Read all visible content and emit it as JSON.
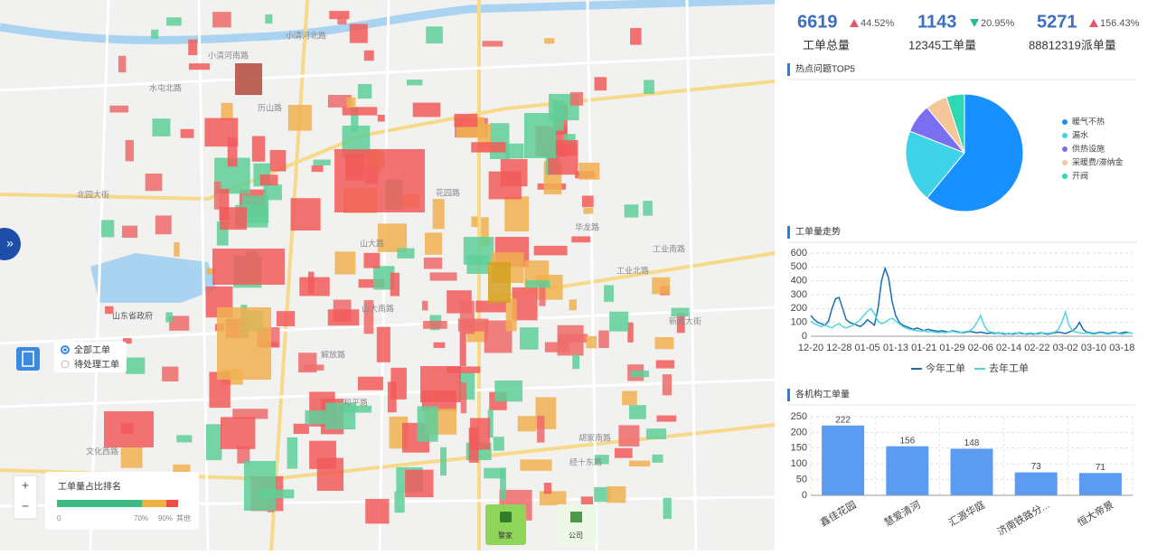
{
  "map": {
    "streets": [
      "小清河北路",
      "小清河南路",
      "北园大街",
      "山东省政府",
      "工业北路",
      "工业南路",
      "山大路",
      "经十东路",
      "解放路",
      "花园路",
      "和平路",
      "文化西路",
      "历山路",
      "华龙路",
      "山大南路",
      "胡家南路",
      "新泺大街",
      "水屯北路"
    ],
    "filter": [
      "全部工单",
      "待处理工单"
    ],
    "legend": {
      "title": "工单量占比排名",
      "ticks": [
        "0",
        "70%",
        "90%",
        "其他"
      ]
    },
    "zoom": [
      "+",
      "−"
    ],
    "buttons": [
      "警家",
      "公司"
    ],
    "expand": "»"
  },
  "stats": [
    {
      "value": 6619,
      "change": "44.52%",
      "trend": "up",
      "label": "工单总量"
    },
    {
      "value": 1143,
      "change": "20.95%",
      "trend": "down",
      "label": "12345工单量"
    },
    {
      "value": 5271,
      "change": "156.43%",
      "trend": "up",
      "label": "88812319派单量"
    }
  ],
  "chart_data": [
    {
      "type": "pie",
      "title": "热点问题TOP5",
      "categories": [
        "暖气不热",
        "漏水",
        "供热设施",
        "采暖费/滞纳金",
        "开阀"
      ],
      "values": [
        61,
        20,
        8,
        6,
        5
      ],
      "colors": [
        "#1890ff",
        "#3ed3e8",
        "#7a6ff0",
        "#f5c69a",
        "#2fd8b4"
      ]
    },
    {
      "type": "line",
      "title": "工单量走势",
      "categories": [
        "12-20",
        null,
        null,
        null,
        null,
        null,
        null,
        null,
        "12-28",
        null,
        null,
        null,
        null,
        null,
        null,
        null,
        "01-05",
        null,
        null,
        null,
        null,
        null,
        null,
        null,
        "01-13",
        null,
        null,
        null,
        null,
        null,
        null,
        null,
        "01-21",
        null,
        null,
        null,
        null,
        null,
        null,
        null,
        "01-29",
        null,
        null,
        null,
        null,
        null,
        null,
        null,
        "02-06",
        null,
        null,
        null,
        null,
        null,
        null,
        null,
        "02-14",
        null,
        null,
        null,
        null,
        null,
        null,
        null,
        "02-22",
        null,
        null,
        null,
        null,
        null,
        null,
        null,
        "03-02",
        null,
        null,
        null,
        null,
        null,
        null,
        null,
        "03-10",
        null,
        null,
        null,
        null,
        null,
        null,
        null,
        "03-18",
        null,
        null,
        null
      ],
      "series": [
        {
          "name": "今年工单",
          "color": "#1a6fb0",
          "values": [
            150,
            120,
            100,
            90,
            80,
            110,
            200,
            270,
            280,
            200,
            120,
            100,
            90,
            80,
            70,
            90,
            120,
            100,
            80,
            200,
            400,
            490,
            420,
            250,
            150,
            100,
            80,
            70,
            60,
            50,
            60,
            50,
            40,
            50,
            45,
            40,
            35,
            40,
            35,
            30,
            40,
            35,
            30,
            25,
            30,
            35,
            30,
            25,
            30,
            25,
            20,
            25,
            20,
            25,
            20,
            15,
            20,
            15,
            20,
            25,
            20,
            15,
            20,
            15,
            20,
            25,
            20,
            15,
            20,
            25,
            30,
            25,
            20,
            30,
            40,
            60,
            100,
            50,
            30,
            25,
            20,
            25,
            30,
            25,
            20,
            25,
            30,
            20,
            25,
            30,
            25,
            20
          ]
        },
        {
          "name": "去年工单",
          "color": "#4fd6df",
          "values": [
            110,
            90,
            80,
            70,
            80,
            70,
            60,
            80,
            90,
            70,
            60,
            70,
            80,
            100,
            120,
            150,
            180,
            200,
            160,
            110,
            90,
            100,
            120,
            130,
            110,
            90,
            70,
            60,
            50,
            45,
            40,
            35,
            40,
            30,
            35,
            30,
            25,
            30,
            25,
            30,
            35,
            30,
            25,
            30,
            35,
            40,
            60,
            100,
            150,
            80,
            40,
            30,
            25,
            20,
            25,
            20,
            15,
            20,
            25,
            20,
            15,
            20,
            25,
            20,
            15,
            20,
            25,
            20,
            25,
            30,
            50,
            100,
            175,
            80,
            40,
            30,
            25,
            20,
            25,
            20,
            15,
            20,
            25,
            20,
            15,
            20,
            25,
            20,
            15,
            20,
            25,
            20
          ]
        }
      ],
      "ylim": [
        0,
        600
      ],
      "yticks": [
        0,
        100,
        200,
        300,
        400,
        500,
        600
      ],
      "grid": true
    },
    {
      "type": "bar",
      "title": "各机构工单量",
      "categories": [
        "鑫佳花园",
        "慧爱清河",
        "汇源华庭",
        "济南铁路分...",
        "恒大帝景"
      ],
      "values": [
        222,
        156,
        148,
        73,
        71
      ],
      "color": "#5b9cf2",
      "ylim": [
        0,
        250
      ],
      "yticks": [
        0,
        50,
        100,
        150,
        200,
        250
      ],
      "grid": true
    }
  ]
}
